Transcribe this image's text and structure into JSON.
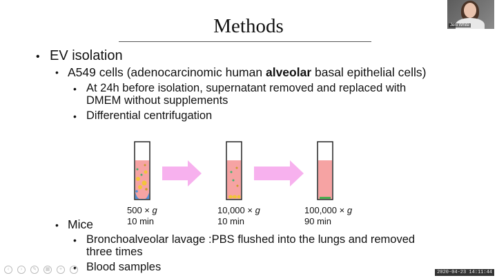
{
  "slide": {
    "title": "Methods",
    "bullets": {
      "ev": "EV isolation",
      "a549_pre": "A549 cells (adenocarcinomic human ",
      "a549_bold": "alveolar",
      "a549_post": " basal epithelial cells)",
      "supernatant_1": "At 24h before isolation, supernatant removed and replaced with",
      "supernatant_2": "DMEM without supplements",
      "centrifugation": "Differential centrifugation",
      "mice": "Mice",
      "lavage_1": "Bronchoalveolar lavage :PBS flushed into the lungs and removed",
      "lavage_2": "three times",
      "blood": "Blood samples"
    },
    "steps": [
      {
        "speed": "500 × ",
        "unit": "g",
        "time": "10 min"
      },
      {
        "speed": "10,000 × ",
        "unit": "g",
        "time": "10 min"
      },
      {
        "speed": "100,000 × ",
        "unit": "g",
        "time": "90 min"
      }
    ]
  },
  "webcam": {
    "name": "Jeni White"
  },
  "timestamp": "2020-04-23  14:11:44",
  "colors": {
    "liquid": "#f6a3a3",
    "arrow": "#f7b1ee",
    "pellet_blue": "#4f8fd6",
    "pellet_yellow": "#f2c43a",
    "pellet_green": "#4caf50"
  }
}
